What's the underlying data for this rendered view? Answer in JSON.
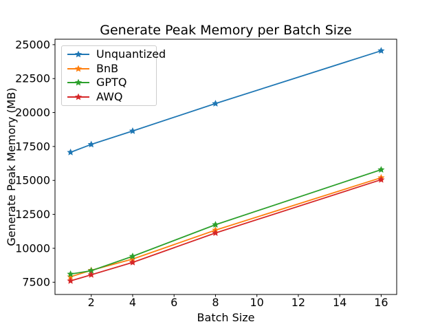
{
  "chart_data": {
    "type": "line",
    "title": "Generate Peak Memory per Batch Size",
    "xlabel": "Batch Size",
    "ylabel": "Generate Peak Memory (MB)",
    "x": [
      1,
      2,
      4,
      8,
      16
    ],
    "series": [
      {
        "name": "Unquantized",
        "color": "#1f77b4",
        "values": [
          17070,
          17650,
          18640,
          20660,
          24550
        ]
      },
      {
        "name": "BnB",
        "color": "#ff7f0e",
        "values": [
          7900,
          8380,
          9210,
          11340,
          15200
        ]
      },
      {
        "name": "GPTQ",
        "color": "#2ca02c",
        "values": [
          8100,
          8350,
          9410,
          11740,
          15790
        ]
      },
      {
        "name": "AWQ",
        "color": "#d62728",
        "values": [
          7600,
          8050,
          8960,
          11130,
          15050
        ]
      }
    ],
    "marker": "star",
    "xticks": [
      2,
      4,
      6,
      8,
      10,
      12,
      14,
      16
    ],
    "yticks": [
      7500,
      10000,
      12500,
      15000,
      17500,
      20000,
      22500,
      25000
    ],
    "xlim": [
      0.25,
      16.75
    ],
    "ylim": [
      6600,
      25400
    ],
    "grid": false,
    "legend_position": "upper left",
    "text_color": "#000000",
    "spine_color": "#000000"
  }
}
